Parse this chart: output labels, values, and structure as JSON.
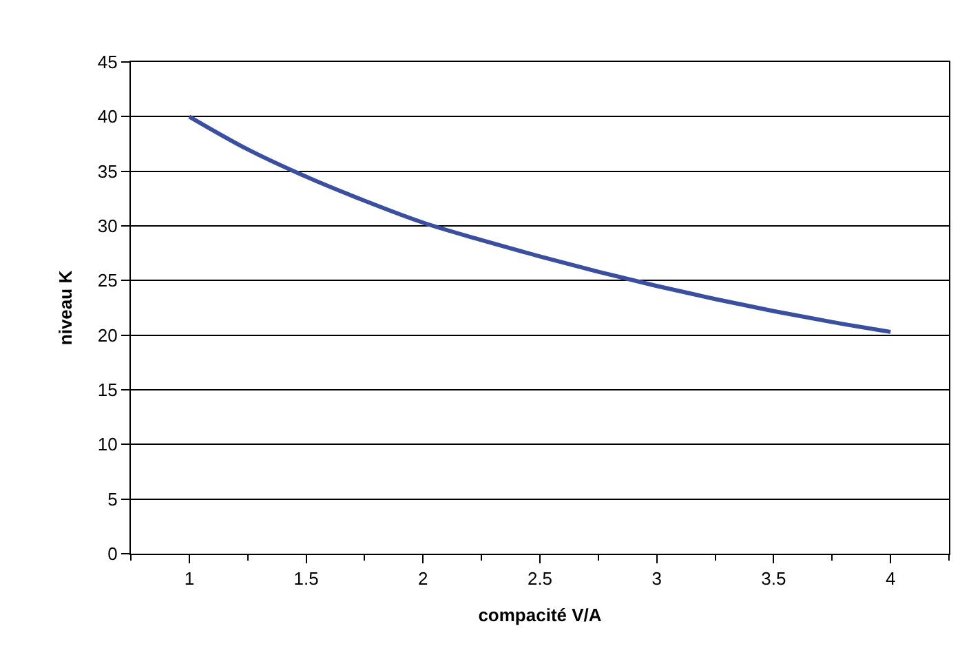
{
  "chart_data": {
    "type": "line",
    "xlabel": "compacité V/A",
    "ylabel": "niveau K",
    "x": [
      1,
      1.25,
      1.5,
      1.75,
      2,
      2.25,
      2.5,
      2.75,
      3,
      3.25,
      3.5,
      3.75,
      4
    ],
    "series": [
      {
        "color": "#3a4fa0",
        "values": [
          40,
          37,
          34.5,
          32.3,
          30.3,
          28.7,
          27.2,
          25.8,
          24.5,
          23.3,
          22.2,
          21.2,
          20.3
        ]
      }
    ],
    "xlim": [
      0.75,
      4.25
    ],
    "xticks": [
      1,
      1.5,
      2,
      2.5,
      3,
      3.5,
      4
    ],
    "ylim": [
      0,
      45
    ],
    "yticks": [
      0,
      5,
      10,
      15,
      20,
      25,
      30,
      35,
      40,
      45
    ],
    "grid": "y",
    "legend": false,
    "marker": "none",
    "line_style": "solid"
  }
}
